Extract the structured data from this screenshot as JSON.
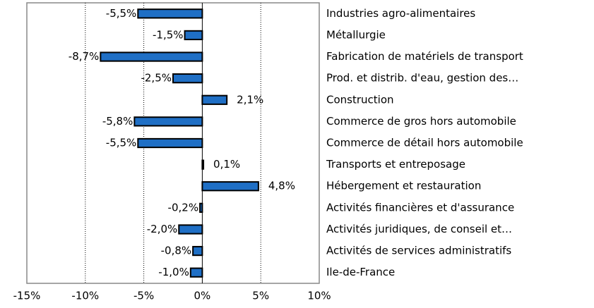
{
  "chart_data": {
    "type": "bar",
    "orientation": "horizontal",
    "categories": [
      "Industries agro-alimentaires",
      "Métallurgie",
      "Fabrication de matériels de transport",
      "Prod. et distrib. d'eau, gestion des…",
      "Construction",
      "Commerce de gros hors automobile",
      "Commerce de détail hors automobile",
      "Transports et entreposage",
      "Hébergement et restauration",
      "Activités financières et d'assurance",
      "Activités juridiques, de conseil et…",
      "Activités de services administratifs",
      "Ile-de-France"
    ],
    "values": [
      -5.5,
      -1.5,
      -8.7,
      -2.5,
      2.1,
      -5.8,
      -5.5,
      0.1,
      4.8,
      -0.2,
      -2.0,
      -0.8,
      -1.0
    ],
    "value_labels": [
      "-5,5%",
      "-1,5%",
      "-8,7%",
      "-2,5%",
      "2,1%",
      "-5,8%",
      "-5,5%",
      "0,1%",
      "4,8%",
      "-0,2%",
      "-2,0%",
      "-0,8%",
      "-1,0%"
    ],
    "color": "#1f6fc5",
    "xlim": [
      -15,
      10
    ],
    "xticks": [
      {
        "value": -15,
        "label": "-15%"
      },
      {
        "value": -10,
        "label": "-10%"
      },
      {
        "value": -5,
        "label": "-5%"
      },
      {
        "value": 0,
        "label": "0%"
      },
      {
        "value": 5,
        "label": "5%"
      },
      {
        "value": 10,
        "label": "10%"
      }
    ],
    "grid": true
  }
}
